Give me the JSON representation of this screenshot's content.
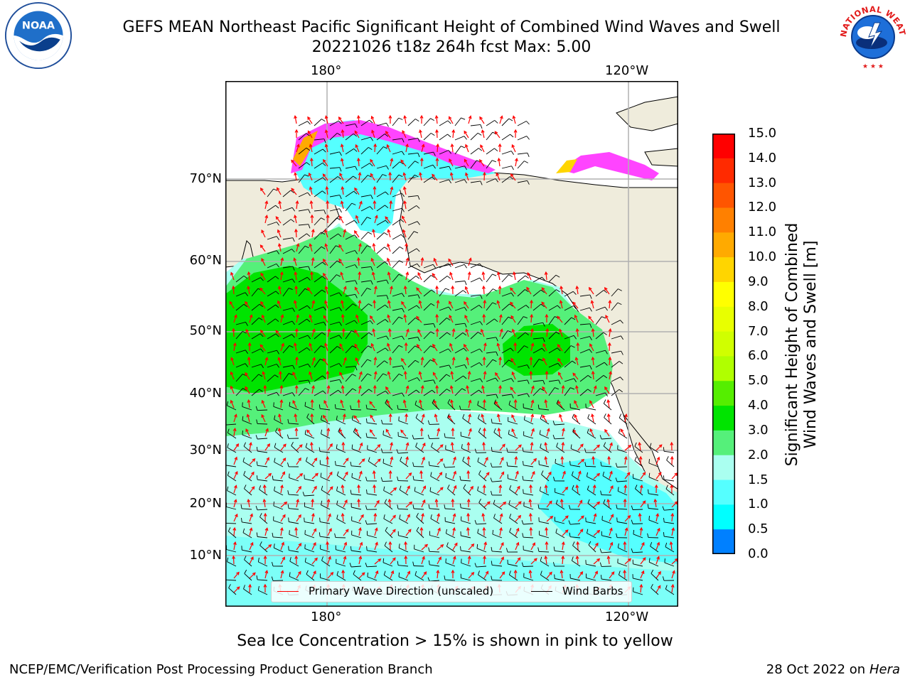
{
  "header": {
    "title_line1": "GEFS MEAN Northeast Pacific Significant Height of Combined Wind Waves and Swell",
    "title_line2": "20221026 t18z 264h fcst   Max: 5.00"
  },
  "logos": {
    "left": {
      "icon": "noaa-logo",
      "text": "NOAA"
    },
    "right": {
      "icon": "nws-logo",
      "text": "NATIONAL WEATHER SERVICE"
    }
  },
  "map": {
    "lon_labels_top": [
      "180°",
      "120°W"
    ],
    "lon_labels_bottom": [
      "180°",
      "120°W"
    ],
    "lat_labels": [
      "70°N",
      "60°N",
      "50°N",
      "40°N",
      "30°N",
      "20°N",
      "10°N"
    ],
    "colors": {
      "land": "#efecdc",
      "grid": "#b0b0b0",
      "wave_arrow": "#ff0000",
      "wind_barb": "#000000"
    }
  },
  "colorbar": {
    "label": "Significant Height of Combined Wind Waves and Swell [m]",
    "label_line1": "Significant Height of Combined",
    "label_line2": "Wind Waves and Swell [m]",
    "ticks": [
      "15.0",
      "14.0",
      "13.0",
      "12.0",
      "11.0",
      "10.0",
      "9.0",
      "8.0",
      "7.0",
      "6.0",
      "5.0",
      "4.0",
      "3.0",
      "2.0",
      "1.5",
      "1.0",
      "0.5",
      "0.0"
    ],
    "colors": [
      "#ff0000",
      "#ff2a00",
      "#ff5500",
      "#ff8000",
      "#ffaa00",
      "#ffd500",
      "#ffff00",
      "#e8ff00",
      "#d0ff00",
      "#b0ff00",
      "#55ee00",
      "#00e400",
      "#55f07a",
      "#aafff0",
      "#55ffff",
      "#00ffff",
      "#0080ff",
      "#0000ff"
    ]
  },
  "legend": {
    "wave_label": "Primary Wave Direction (unscaled)",
    "wind_label": "Wind Barbs"
  },
  "footer": {
    "note": "Sea Ice Concentration > 15% is shown in pink to yellow",
    "credit": "NCEP/EMC/Verification Post Processing Product Generation Branch",
    "date": "28 Oct 2022 on",
    "host": "Hera"
  }
}
